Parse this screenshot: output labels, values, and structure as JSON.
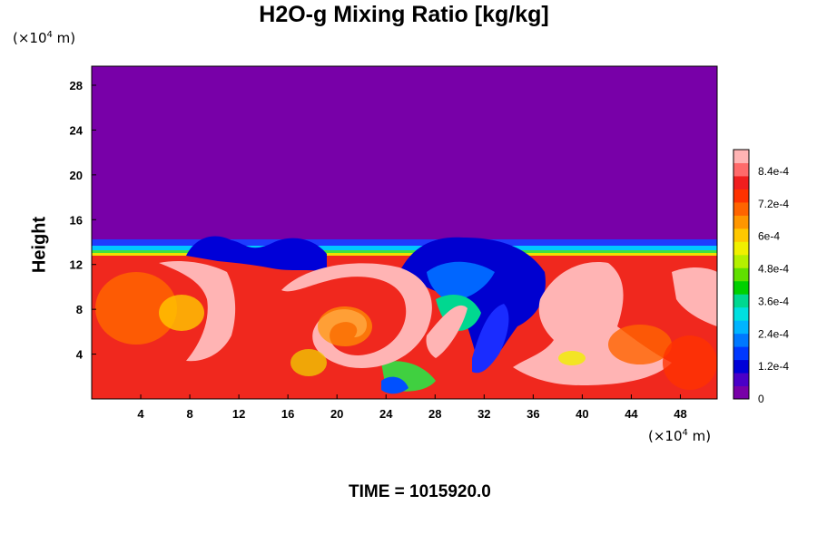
{
  "chart_data": {
    "type": "heatmap",
    "title": "H2O-g Mixing Ratio [kg/kg]",
    "ylabel": "Height",
    "x_unit": {
      "prefix": "(×10",
      "exp": "4",
      "suffix": " m)"
    },
    "y_unit": {
      "prefix": "(×10",
      "exp": "4",
      "suffix": " m)"
    },
    "x_ticks": [
      4,
      8,
      12,
      16,
      20,
      24,
      28,
      32,
      36,
      40,
      44,
      48
    ],
    "y_ticks": [
      4,
      8,
      12,
      16,
      20,
      24,
      28
    ],
    "xlim": [
      0,
      51
    ],
    "ylim": [
      0,
      29.7
    ],
    "colorbar": {
      "range": [
        0,
        0.00092
      ],
      "tick_labels": [
        "0",
        "1.2e-4",
        "2.4e-4",
        "3.6e-4",
        "4.8e-4",
        "6e-4",
        "7.2e-4",
        "8.4e-4"
      ],
      "tick_values": [
        0,
        0.00012,
        0.00024,
        0.00036,
        0.00048,
        0.0006,
        0.00072,
        0.00084
      ],
      "colors": [
        "#7800a8",
        "#4a00c8",
        "#0000d8",
        "#0038ff",
        "#0078ff",
        "#00b4ff",
        "#00e0e0",
        "#00d890",
        "#00d000",
        "#60e000",
        "#b4f000",
        "#f0f000",
        "#ffc800",
        "#ff9600",
        "#ff6400",
        "#ff3200",
        "#f01e1e",
        "#ff6a6a",
        "#ffb4b4"
      ]
    },
    "field_description_values": {
      "upper_layer_value": 0,
      "lower_layer_value_approx": 0.0009,
      "interface_height_approx": 13.8
    },
    "time_label": "TIME = ",
    "time_value": "1015920.0"
  }
}
